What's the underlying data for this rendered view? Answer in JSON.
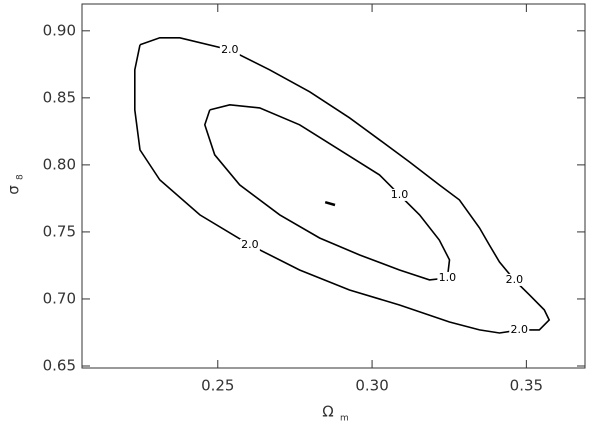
{
  "chart_data": {
    "type": "contour",
    "xlabel": {
      "symbol": "Ω",
      "subscript": "m"
    },
    "ylabel": {
      "symbol": "σ",
      "subscript": "8"
    },
    "xlim": [
      0.206,
      0.369
    ],
    "ylim": [
      0.6485,
      0.92
    ],
    "xticks": [
      0.25,
      {
        "value": 0.3,
        "label": "0.30"
      },
      0.35
    ],
    "yticks": [
      0.65,
      {
        "value": 0.7,
        "label": "0.70"
      },
      0.75,
      {
        "value": 0.8,
        "label": "0.80"
      },
      0.85,
      {
        "value": 0.9,
        "label": "0.90"
      }
    ],
    "color": "#000000",
    "contours": [
      {
        "label": "2.0",
        "x": [
          0.2248,
          0.2312,
          0.2377,
          0.2539,
          0.2668,
          0.2798,
          0.2927,
          0.3024,
          0.3121,
          0.3218,
          0.3283,
          0.3348,
          0.338,
          0.3413,
          0.3461,
          0.351,
          0.3558,
          0.3574,
          0.3542,
          0.3477,
          0.3413,
          0.3348,
          0.3251,
          0.3089,
          0.2927,
          0.2765,
          0.2604,
          0.2442,
          0.2312,
          0.2248,
          0.2231,
          0.2231,
          0.2248
        ],
        "y": [
          0.8896,
          0.8948,
          0.8948,
          0.8858,
          0.8709,
          0.8545,
          0.8351,
          0.8187,
          0.8022,
          0.7851,
          0.7739,
          0.753,
          0.7403,
          0.7276,
          0.7142,
          0.703,
          0.6918,
          0.6843,
          0.6769,
          0.6769,
          0.6746,
          0.6769,
          0.6828,
          0.6955,
          0.7067,
          0.7216,
          0.7403,
          0.7627,
          0.7888,
          0.8112,
          0.841,
          0.8709,
          0.8896
        ]
      },
      {
        "label": "1.0",
        "x": [
          0.2474,
          0.2539,
          0.2636,
          0.2765,
          0.2895,
          0.3024,
          0.3089,
          0.3154,
          0.3218,
          0.3251,
          0.3244,
          0.3186,
          0.3089,
          0.296,
          0.283,
          0.2701,
          0.2571,
          0.249,
          0.2458,
          0.2474
        ],
        "y": [
          0.841,
          0.8448,
          0.8425,
          0.8299,
          0.8112,
          0.7925,
          0.7776,
          0.7627,
          0.744,
          0.7291,
          0.7157,
          0.7142,
          0.7216,
          0.7328,
          0.7455,
          0.7627,
          0.7851,
          0.8075,
          0.8299,
          0.841
        ]
      }
    ],
    "best_fit": {
      "x": [
        0.2848,
        0.288
      ],
      "y": [
        0.7722,
        0.7701
      ]
    }
  }
}
